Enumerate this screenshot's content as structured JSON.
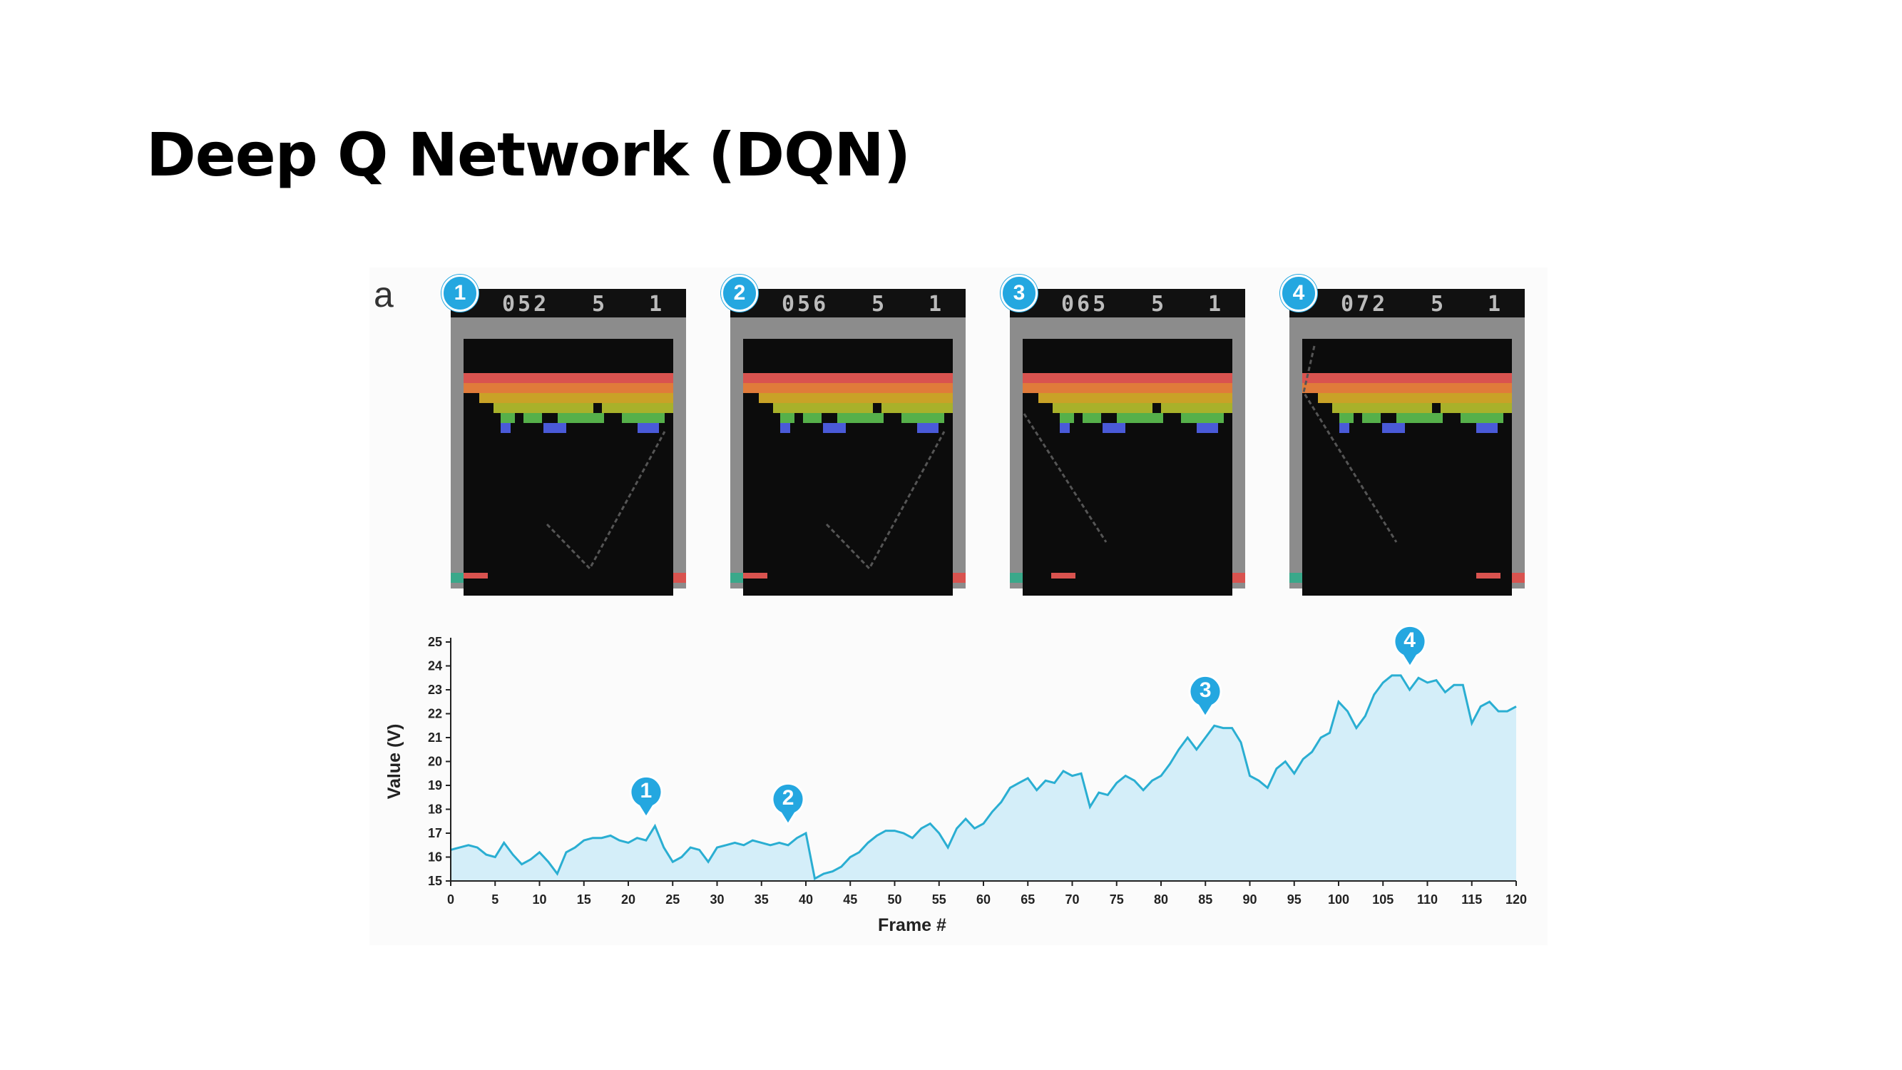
{
  "slide": {
    "title": "Deep Q Network (DQN)"
  },
  "figure": {
    "panel_label": "a"
  },
  "frames": [
    {
      "badge": "1",
      "score": "052",
      "lives": "5",
      "player": "1",
      "paddle": "left",
      "path": "v"
    },
    {
      "badge": "2",
      "score": "056",
      "lives": "5",
      "player": "1",
      "paddle": "left",
      "path": "v"
    },
    {
      "badge": "3",
      "score": "065",
      "lives": "5",
      "player": "1",
      "paddle": "left",
      "path": "down-right"
    },
    {
      "badge": "4",
      "score": "072",
      "lives": "5",
      "player": "1",
      "paddle": "right",
      "path": "down-right"
    }
  ],
  "colors": {
    "line": "#2aaed2",
    "fill": "#d4eef9",
    "badge": "#24a7e0",
    "bricks": [
      "#d9534f",
      "#e07b3a",
      "#c9a227",
      "#a8b12a",
      "#56b04a",
      "#4a5ad8"
    ],
    "wall": "#8c8c8c",
    "screen": "#0c0c0c"
  },
  "chart_data": {
    "type": "area",
    "xlabel": "Frame #",
    "ylabel": "Value (V)",
    "xlim": [
      0,
      120
    ],
    "ylim": [
      15,
      25
    ],
    "xticks": [
      0,
      5,
      10,
      15,
      20,
      25,
      30,
      35,
      40,
      45,
      50,
      55,
      60,
      65,
      70,
      75,
      80,
      85,
      90,
      95,
      100,
      105,
      110,
      115,
      120
    ],
    "yticks": [
      15,
      16,
      17,
      18,
      19,
      20,
      21,
      22,
      23,
      24,
      25
    ],
    "series": [
      {
        "x": [
          0,
          1,
          2,
          3,
          4,
          5,
          6,
          7,
          8,
          9,
          10,
          11,
          12,
          13,
          14,
          15,
          16,
          17,
          18,
          19,
          20,
          21,
          22,
          23,
          24,
          25,
          26,
          27,
          28,
          29,
          30,
          31,
          32,
          33,
          34,
          35,
          36,
          37,
          38,
          39,
          40,
          41,
          42,
          43,
          44,
          45,
          46,
          47,
          48,
          49,
          50,
          51,
          52,
          53,
          54,
          55,
          56,
          57,
          58,
          59,
          60,
          61,
          62,
          63,
          64,
          65,
          66,
          67,
          68,
          69,
          70,
          71,
          72,
          73,
          74,
          75,
          76,
          77,
          78,
          79,
          80,
          81,
          82,
          83,
          84,
          85,
          86,
          87,
          88,
          89,
          90,
          91,
          92,
          93,
          94,
          95,
          96,
          97,
          98,
          99,
          100,
          101,
          102,
          103,
          104,
          105,
          106,
          107,
          108,
          109,
          110,
          111,
          112,
          113,
          114,
          115,
          116,
          117,
          118,
          119,
          120
        ],
        "values": [
          16.3,
          16.4,
          16.5,
          16.4,
          16.1,
          16.0,
          16.6,
          16.1,
          15.7,
          15.9,
          16.2,
          15.8,
          15.3,
          16.2,
          16.4,
          16.7,
          16.8,
          16.8,
          16.9,
          16.7,
          16.6,
          16.8,
          16.7,
          17.3,
          16.4,
          15.8,
          16.0,
          16.4,
          16.3,
          15.8,
          16.4,
          16.5,
          16.6,
          16.5,
          16.7,
          16.6,
          16.5,
          16.6,
          16.5,
          16.8,
          17.0,
          15.1,
          15.3,
          15.4,
          15.6,
          16.0,
          16.2,
          16.6,
          16.9,
          17.1,
          17.1,
          17.0,
          16.8,
          17.2,
          17.4,
          17.0,
          16.4,
          17.2,
          17.6,
          17.2,
          17.4,
          17.9,
          18.3,
          18.9,
          19.1,
          19.3,
          18.8,
          19.2,
          19.1,
          19.6,
          19.4,
          19.5,
          18.1,
          18.7,
          18.6,
          19.1,
          19.4,
          19.2,
          18.8,
          19.2,
          19.4,
          19.9,
          20.5,
          21.0,
          20.5,
          21.0,
          21.5,
          21.4,
          21.4,
          20.8,
          19.4,
          19.2,
          18.9,
          19.7,
          20.0,
          19.5,
          20.1,
          20.4,
          21.0,
          21.2,
          22.5,
          22.1,
          21.4,
          21.9,
          22.8,
          23.3,
          23.6,
          23.6,
          23.0,
          23.5,
          23.3,
          23.4,
          22.9,
          23.2,
          23.2,
          21.6,
          22.3,
          22.5,
          22.1,
          22.1,
          22.3
        ]
      }
    ],
    "markers": [
      {
        "label": "1",
        "x": 22,
        "y": 17.3
      },
      {
        "label": "2",
        "x": 38,
        "y": 17.0
      },
      {
        "label": "3",
        "x": 85,
        "y": 21.5
      },
      {
        "label": "4",
        "x": 108,
        "y": 23.6
      }
    ]
  }
}
